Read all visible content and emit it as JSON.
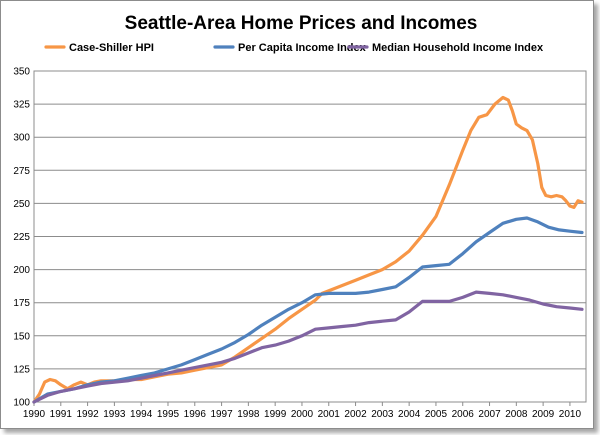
{
  "chart_data": {
    "type": "line",
    "title": "Seattle-Area Home Prices and Incomes",
    "xlabel": "",
    "ylabel": "",
    "xlim": [
      1990,
      2010.6
    ],
    "ylim": [
      100,
      350
    ],
    "x_ticks": [
      "1990",
      "1991",
      "1992",
      "1993",
      "1994",
      "1995",
      "1996",
      "1997",
      "1998",
      "1999",
      "2000",
      "2001",
      "2002",
      "2003",
      "2004",
      "2005",
      "2006",
      "2007",
      "2008",
      "2009",
      "2010"
    ],
    "y_ticks": [
      "100",
      "125",
      "150",
      "175",
      "200",
      "225",
      "250",
      "275",
      "300",
      "325",
      "350"
    ],
    "grid": true,
    "legend_position": "top",
    "series": [
      {
        "name": "Case-Shiller HPI",
        "color": "#f79646",
        "points": [
          [
            1990.0,
            100
          ],
          [
            1990.2,
            106
          ],
          [
            1990.4,
            115
          ],
          [
            1990.6,
            117
          ],
          [
            1990.8,
            116
          ],
          [
            1991.0,
            113
          ],
          [
            1991.25,
            110
          ],
          [
            1991.5,
            113
          ],
          [
            1991.75,
            115
          ],
          [
            1992.0,
            113
          ],
          [
            1992.25,
            115
          ],
          [
            1992.5,
            116
          ],
          [
            1992.75,
            116
          ],
          [
            1993.0,
            116
          ],
          [
            1993.5,
            117
          ],
          [
            1994.0,
            117
          ],
          [
            1994.5,
            119
          ],
          [
            1995.0,
            121
          ],
          [
            1995.5,
            122
          ],
          [
            1996.0,
            124
          ],
          [
            1996.5,
            126
          ],
          [
            1997.0,
            128
          ],
          [
            1997.5,
            134
          ],
          [
            1998.0,
            141
          ],
          [
            1998.5,
            148
          ],
          [
            1999.0,
            155
          ],
          [
            1999.5,
            163
          ],
          [
            2000.0,
            170
          ],
          [
            2000.5,
            177
          ],
          [
            2000.75,
            182
          ],
          [
            2001.0,
            184
          ],
          [
            2001.5,
            188
          ],
          [
            2002.0,
            192
          ],
          [
            2002.5,
            196
          ],
          [
            2003.0,
            200
          ],
          [
            2003.5,
            206
          ],
          [
            2004.0,
            214
          ],
          [
            2004.5,
            226
          ],
          [
            2005.0,
            240
          ],
          [
            2005.5,
            264
          ],
          [
            2006.0,
            290
          ],
          [
            2006.3,
            305
          ],
          [
            2006.6,
            315
          ],
          [
            2006.9,
            317
          ],
          [
            2007.2,
            325
          ],
          [
            2007.5,
            330
          ],
          [
            2007.7,
            328
          ],
          [
            2007.85,
            320
          ],
          [
            2008.0,
            310
          ],
          [
            2008.2,
            307
          ],
          [
            2008.4,
            305
          ],
          [
            2008.6,
            298
          ],
          [
            2008.8,
            280
          ],
          [
            2008.95,
            262
          ],
          [
            2009.1,
            256
          ],
          [
            2009.3,
            255
          ],
          [
            2009.5,
            256
          ],
          [
            2009.7,
            255
          ],
          [
            2009.85,
            252
          ],
          [
            2010.0,
            248
          ],
          [
            2010.15,
            247
          ],
          [
            2010.3,
            252
          ],
          [
            2010.45,
            251
          ]
        ]
      },
      {
        "name": "Per Capita Income Index",
        "color": "#4f81bd",
        "points": [
          [
            1990.0,
            100
          ],
          [
            1990.5,
            106
          ],
          [
            1991.0,
            108
          ],
          [
            1991.5,
            110
          ],
          [
            1992.0,
            113
          ],
          [
            1992.5,
            115
          ],
          [
            1993.0,
            116
          ],
          [
            1993.5,
            118
          ],
          [
            1994.0,
            120
          ],
          [
            1994.5,
            122
          ],
          [
            1995.0,
            125
          ],
          [
            1995.5,
            128
          ],
          [
            1996.0,
            132
          ],
          [
            1996.5,
            136
          ],
          [
            1997.0,
            140
          ],
          [
            1997.5,
            145
          ],
          [
            1998.0,
            151
          ],
          [
            1998.5,
            158
          ],
          [
            1999.0,
            164
          ],
          [
            1999.5,
            170
          ],
          [
            2000.0,
            175
          ],
          [
            2000.5,
            181
          ],
          [
            2001.0,
            182
          ],
          [
            2001.5,
            182
          ],
          [
            2002.0,
            182
          ],
          [
            2002.5,
            183
          ],
          [
            2003.0,
            185
          ],
          [
            2003.5,
            187
          ],
          [
            2004.0,
            194
          ],
          [
            2004.5,
            202
          ],
          [
            2005.0,
            203
          ],
          [
            2005.5,
            204
          ],
          [
            2006.0,
            212
          ],
          [
            2006.5,
            221
          ],
          [
            2007.0,
            228
          ],
          [
            2007.5,
            235
          ],
          [
            2008.0,
            238
          ],
          [
            2008.4,
            239
          ],
          [
            2008.8,
            236
          ],
          [
            2009.2,
            232
          ],
          [
            2009.6,
            230
          ],
          [
            2010.0,
            229
          ],
          [
            2010.45,
            228
          ]
        ]
      },
      {
        "name": "Median Household Income Index",
        "color": "#8064a2",
        "points": [
          [
            1990.0,
            100
          ],
          [
            1990.5,
            105
          ],
          [
            1991.0,
            108
          ],
          [
            1991.5,
            110
          ],
          [
            1992.0,
            112
          ],
          [
            1992.5,
            114
          ],
          [
            1993.0,
            115
          ],
          [
            1993.5,
            116
          ],
          [
            1994.0,
            118
          ],
          [
            1994.5,
            120
          ],
          [
            1995.0,
            122
          ],
          [
            1995.5,
            124
          ],
          [
            1996.0,
            126
          ],
          [
            1996.5,
            128
          ],
          [
            1997.0,
            130
          ],
          [
            1997.5,
            133
          ],
          [
            1998.0,
            137
          ],
          [
            1998.5,
            141
          ],
          [
            1999.0,
            143
          ],
          [
            1999.5,
            146
          ],
          [
            2000.0,
            150
          ],
          [
            2000.5,
            155
          ],
          [
            2001.0,
            156
          ],
          [
            2001.5,
            157
          ],
          [
            2002.0,
            158
          ],
          [
            2002.5,
            160
          ],
          [
            2003.0,
            161
          ],
          [
            2003.5,
            162
          ],
          [
            2004.0,
            168
          ],
          [
            2004.5,
            176
          ],
          [
            2005.0,
            176
          ],
          [
            2005.5,
            176
          ],
          [
            2006.0,
            179
          ],
          [
            2006.5,
            183
          ],
          [
            2007.0,
            182
          ],
          [
            2007.5,
            181
          ],
          [
            2008.0,
            179
          ],
          [
            2008.5,
            177
          ],
          [
            2009.0,
            174
          ],
          [
            2009.5,
            172
          ],
          [
            2010.0,
            171
          ],
          [
            2010.45,
            170
          ]
        ]
      }
    ]
  }
}
